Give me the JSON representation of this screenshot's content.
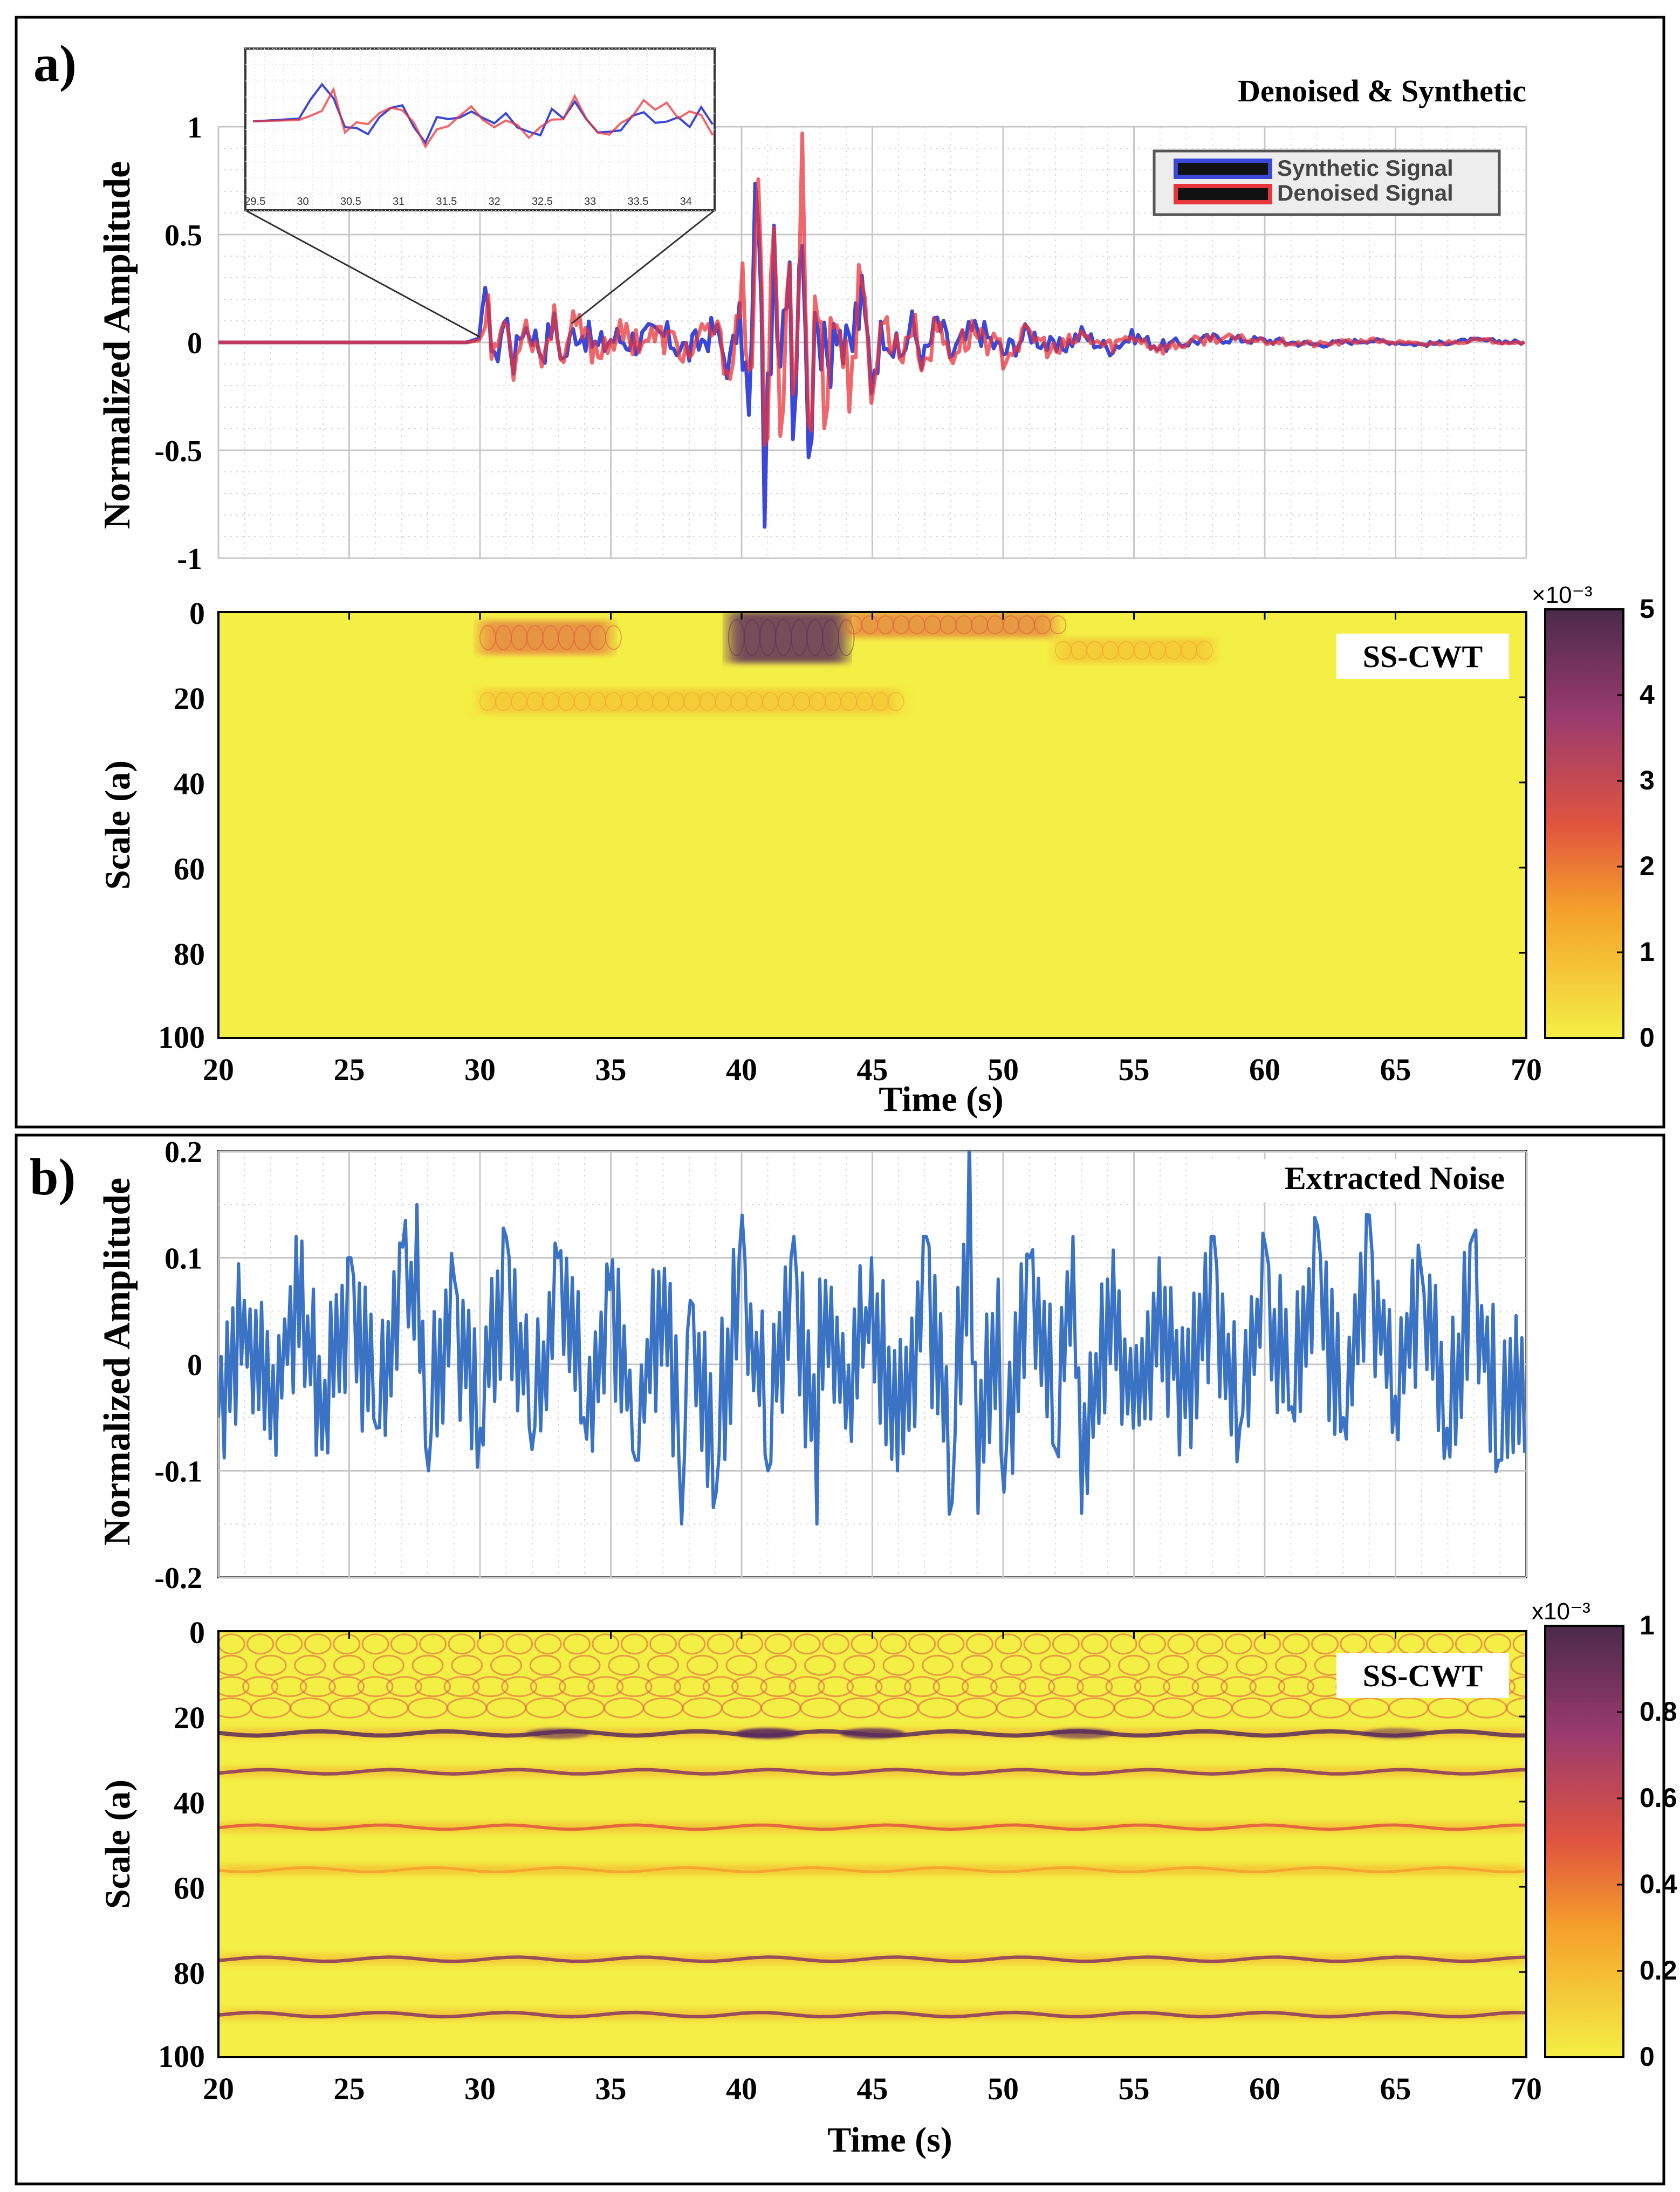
{
  "colors": {
    "synthetic": "#3b47d6",
    "denoised": "#e8343b",
    "overlap": "#7a2a7a",
    "noise": "#3a72c4",
    "frame": "#000000",
    "grid": "#bdbdbd",
    "heat_low": "#f4ef45",
    "heat_mid": "#e0543f",
    "heat_high": "#5a2c5c"
  },
  "chart_data": [
    {
      "panel": "a)",
      "type": "line",
      "title": "Denoised & Synthetic",
      "xlabel": "",
      "ylabel": "Normalized Amplitude",
      "xlim": [
        20,
        70
      ],
      "ylim": [
        -1,
        1
      ],
      "yticks": [
        "1",
        "0.5",
        "0",
        "-0.5",
        "-1"
      ],
      "legend": {
        "position": "top-right",
        "entries": [
          "Synthetic Signal",
          "Denoised Signal"
        ]
      },
      "series": [
        {
          "name": "Synthetic Signal",
          "x": [
            20,
            29.5,
            30,
            30.3,
            30.5,
            30.8,
            31,
            31.3,
            31.6,
            32,
            32.4,
            32.8,
            33.2,
            33.6,
            34,
            34.5,
            35,
            36,
            37,
            38,
            39,
            39.5,
            40,
            40.3,
            40.6,
            40.9,
            41.2,
            41.5,
            41.8,
            42,
            42.3,
            42.6,
            42.9,
            43.2,
            43.6,
            44,
            44.5,
            45,
            45.5,
            46,
            46.5,
            47,
            47.5,
            48,
            49,
            50,
            51,
            52,
            53,
            54,
            55,
            56,
            58,
            60,
            62,
            64,
            66,
            68,
            70
          ],
          "values": [
            0,
            0,
            0.02,
            0.27,
            -0.15,
            0.05,
            0.12,
            -0.1,
            0.08,
            0.05,
            -0.05,
            0.1,
            -0.08,
            0.06,
            0.04,
            -0.03,
            0.02,
            0.01,
            0.03,
            -0.04,
            0.06,
            -0.12,
            0.15,
            -0.45,
            0.95,
            -0.78,
            0.4,
            -0.3,
            0.6,
            -0.4,
            0.78,
            -0.55,
            0.3,
            -0.2,
            0.25,
            -0.15,
            0.18,
            -0.12,
            0.1,
            -0.09,
            0.08,
            -0.08,
            0.1,
            -0.06,
            0.07,
            -0.05,
            0.05,
            -0.04,
            0.04,
            -0.03,
            0.03,
            -0.02,
            0.02,
            0.01,
            -0.01,
            0.01,
            -0.01,
            0.01,
            0
          ]
        },
        {
          "name": "Denoised Signal",
          "x": [
            20,
            29.5,
            30,
            30.3,
            30.5,
            30.8,
            31,
            31.3,
            31.6,
            32,
            32.4,
            32.8,
            33.2,
            33.6,
            34,
            34.5,
            35,
            36,
            37,
            38,
            39,
            39.5,
            40,
            40.3,
            40.6,
            40.9,
            41.2,
            41.5,
            41.8,
            42,
            42.3,
            42.6,
            42.9,
            43.2,
            43.6,
            44,
            44.5,
            45,
            45.5,
            46,
            46.5,
            47,
            47.5,
            48,
            49,
            50,
            51,
            52,
            53,
            54,
            55,
            56,
            58,
            60,
            62,
            64,
            66,
            68,
            70
          ],
          "values": [
            0,
            0,
            0.01,
            0.22,
            -0.12,
            0.07,
            0.1,
            -0.13,
            0.1,
            0.03,
            -0.08,
            0.12,
            -0.06,
            0.08,
            0.02,
            -0.05,
            0.03,
            0.02,
            0.02,
            -0.05,
            0.07,
            -0.15,
            0.2,
            -0.4,
            1.0,
            -0.7,
            0.45,
            -0.35,
            0.55,
            -0.45,
            0.9,
            -0.6,
            0.35,
            -0.25,
            0.2,
            -0.18,
            0.15,
            -0.14,
            0.12,
            -0.07,
            0.09,
            -0.1,
            0.08,
            -0.05,
            0.06,
            -0.06,
            0.04,
            -0.05,
            0.03,
            -0.02,
            0.03,
            -0.03,
            0.02,
            0.01,
            -0.01,
            0.01,
            -0.01,
            0.01,
            0
          ]
        }
      ],
      "inset": {
        "xlim": [
          29.4,
          34.3
        ],
        "xticks": [
          "29.5",
          "30",
          "30.5",
          "31",
          "31.5",
          "32",
          "32.5",
          "33",
          "33.5",
          "34"
        ]
      }
    },
    {
      "panel": "a)",
      "type": "heatmap",
      "title": "SS-CWT",
      "xlabel": "Time  (s)",
      "ylabel": "Scale (a)",
      "xlim": [
        20,
        70
      ],
      "ylim": [
        0,
        100
      ],
      "xticks": [
        "20",
        "25",
        "30",
        "35",
        "40",
        "45",
        "50",
        "55",
        "60",
        "65",
        "70"
      ],
      "yticks": [
        "0",
        "20",
        "40",
        "60",
        "80",
        "100"
      ],
      "colorbar": {
        "multiplier": "×10⁻³",
        "range": [
          0,
          5
        ],
        "ticks": [
          "5",
          "4",
          "3",
          "2",
          "1",
          "0"
        ]
      },
      "features": [
        {
          "t": [
            30,
            35
          ],
          "scale": [
            2,
            10
          ],
          "level": 0.45
        },
        {
          "t": [
            39.5,
            44
          ],
          "scale": [
            0,
            12
          ],
          "level": 0.95
        },
        {
          "t": [
            44,
            52
          ],
          "scale": [
            0,
            6
          ],
          "level": 0.4
        },
        {
          "t": [
            30,
            46
          ],
          "scale": [
            18,
            24
          ],
          "level": 0.15
        },
        {
          "t": [
            52,
            58
          ],
          "scale": [
            6,
            12
          ],
          "level": 0.15
        }
      ]
    },
    {
      "panel": "b)",
      "type": "line",
      "title": "Extracted Noise",
      "xlabel": "",
      "ylabel": "Normalized Amplitude",
      "xlim": [
        20,
        70
      ],
      "ylim": [
        -0.2,
        0.2
      ],
      "yticks": [
        "0.2",
        "0.1",
        "0",
        "-0.1",
        "-0.2"
      ],
      "series": [
        {
          "x": [
            20,
            21,
            22,
            23,
            24,
            25,
            26,
            27,
            27.6,
            28,
            29,
            30,
            31,
            32,
            33,
            34,
            35,
            36,
            37,
            37.7,
            38,
            39,
            40,
            41,
            42,
            42.9,
            43,
            44,
            45,
            46,
            47,
            48,
            48.7,
            49,
            49.8,
            50,
            51,
            52,
            52.7,
            53,
            54,
            55,
            56,
            57,
            58,
            59,
            60,
            61,
            62,
            63,
            64,
            65,
            66,
            67,
            68,
            69,
            70
          ],
          "values": [
            -0.05,
            0.06,
            -0.07,
            0.12,
            -0.08,
            0.1,
            -0.06,
            0.11,
            0.15,
            -0.1,
            0.08,
            -0.06,
            0.12,
            -0.08,
            0.1,
            -0.05,
            0.07,
            -0.09,
            0.09,
            -0.15,
            0.06,
            -0.12,
            0.14,
            -0.1,
            0.12,
            -0.15,
            0.08,
            -0.06,
            0.1,
            -0.1,
            0.12,
            -0.13,
            0.22,
            -0.14,
            0.08,
            -0.12,
            0.1,
            -0.08,
            0.12,
            -0.14,
            0.08,
            -0.06,
            0.1,
            -0.05,
            0.12,
            -0.06,
            0.11,
            -0.04,
            0.13,
            -0.05,
            0.14,
            -0.03,
            0.09,
            -0.06,
            0.12,
            -0.09,
            -0.03
          ]
        }
      ]
    },
    {
      "panel": "b)",
      "type": "heatmap",
      "title": "SS-CWT",
      "xlabel": "Time  (s)",
      "ylabel": "Scale (a)",
      "xlim": [
        20,
        70
      ],
      "ylim": [
        0,
        100
      ],
      "xticks": [
        "20",
        "25",
        "30",
        "35",
        "40",
        "45",
        "50",
        "55",
        "60",
        "65",
        "70"
      ],
      "yticks": [
        "0",
        "20",
        "40",
        "60",
        "80",
        "100"
      ],
      "colorbar": {
        "multiplier": "x10⁻³",
        "range": [
          0,
          1
        ],
        "ticks": [
          "1",
          "0.8",
          "0.6",
          "0.4",
          "0.2",
          "0"
        ]
      },
      "ridges": [
        {
          "scale": 24,
          "level": 0.95
        },
        {
          "scale": 33,
          "level": 0.6
        },
        {
          "scale": 46,
          "level": 0.45
        },
        {
          "scale": 56,
          "level": 0.3
        },
        {
          "scale": 77,
          "level": 0.55
        },
        {
          "scale": 90,
          "level": 0.6
        }
      ]
    }
  ]
}
